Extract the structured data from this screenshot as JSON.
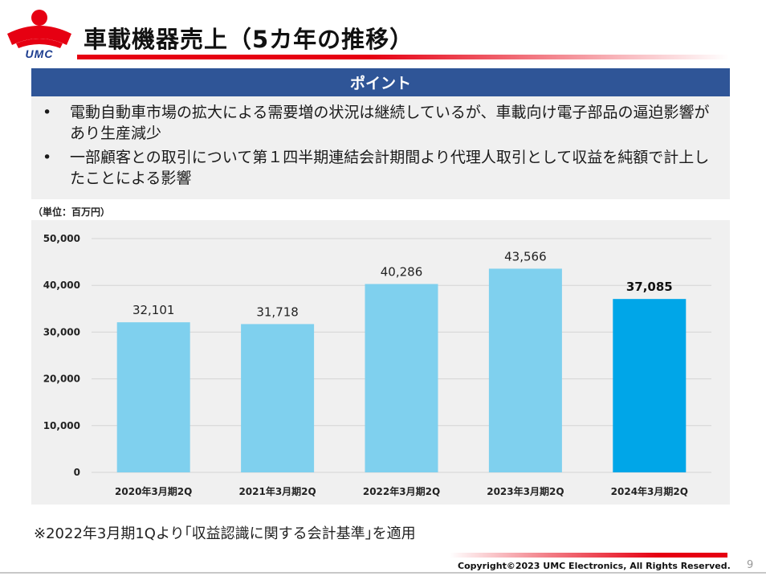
{
  "header": {
    "logo_text": "UMC",
    "title": "車載機器売上（5カ年の推移）"
  },
  "points": {
    "heading": "ポイント",
    "items": [
      "電動自動車市場の拡大による需要増の状況は継続しているが、車載向け電子部品の逼迫影響があり生産減少",
      "一部顧客との取引について第１四半期連結会計期間より代理人取引として収益を純額で計上したことによる影響"
    ]
  },
  "unit_label": "（単位：百万円）",
  "chart_data": {
    "type": "bar",
    "categories": [
      "2020年3月期2Q",
      "2021年3月期2Q",
      "2022年3月期2Q",
      "2023年3月期2Q",
      "2024年3月期2Q"
    ],
    "values": [
      32101,
      31718,
      40286,
      43566,
      37085
    ],
    "value_labels": [
      "32,101",
      "31,718",
      "40,286",
      "43,566",
      "37,085"
    ],
    "highlight_index": 4,
    "ylim": [
      0,
      50000
    ],
    "yticks": [
      0,
      10000,
      20000,
      30000,
      40000,
      50000
    ],
    "ytick_labels": [
      "0",
      "10,000",
      "20,000",
      "30,000",
      "40,000",
      "50,000"
    ],
    "colors": {
      "bar": "#7fd0ee",
      "highlight": "#00a6e8",
      "grid": "#d4d4d4"
    },
    "grid": true,
    "title": "",
    "xlabel": "",
    "ylabel": ""
  },
  "footnote": "※2022年3月期1Qより｢収益認識に関する会計基準｣を適用",
  "footer": {
    "copyright": "Copyright©2023 UMC Electronics, All Rights Reserved.",
    "page_number": "9"
  }
}
